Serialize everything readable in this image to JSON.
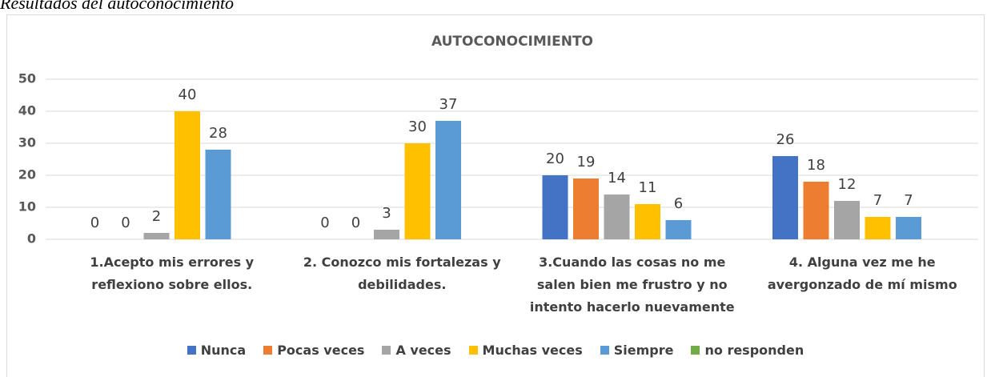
{
  "caption": "Resultados del autoconocimiento",
  "chart_data": {
    "type": "bar",
    "title": "AUTOCONOCIMIENTO",
    "categories": [
      "1.Acepto mis errores y reflexiono sobre ellos.",
      "2. Conozco mis fortalezas y debilidades.",
      "3.Cuando las cosas no me salen bien me frustro y no intento hacerlo nuevamente",
      "4. Alguna vez me he avergonzado de mí mismo"
    ],
    "series": [
      {
        "name": "Nunca",
        "color": "#4472c4",
        "values": [
          0,
          0,
          20,
          26
        ]
      },
      {
        "name": "Pocas veces",
        "color": "#ed7d31",
        "values": [
          0,
          0,
          19,
          18
        ]
      },
      {
        "name": "A veces",
        "color": "#a5a5a5",
        "values": [
          2,
          3,
          14,
          12
        ]
      },
      {
        "name": "Muchas veces",
        "color": "#ffc000",
        "values": [
          40,
          30,
          11,
          7
        ]
      },
      {
        "name": "Siempre",
        "color": "#5b9bd5",
        "values": [
          28,
          37,
          6,
          7
        ]
      },
      {
        "name": "no responden",
        "color": "#70ad47",
        "values": [
          null,
          null,
          null,
          null
        ]
      }
    ],
    "ylim": [
      0,
      50
    ],
    "yticks": [
      0,
      10,
      20,
      30,
      40,
      50
    ],
    "grid": true,
    "legend": "bottom"
  }
}
